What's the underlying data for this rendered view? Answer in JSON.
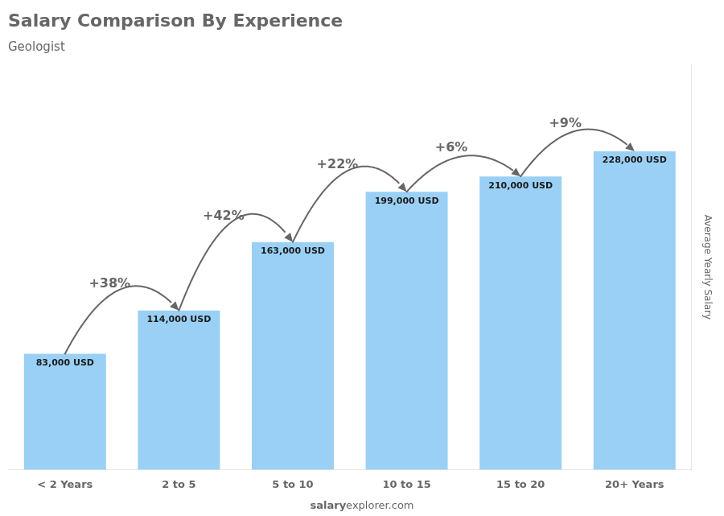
{
  "chart_data": {
    "type": "bar",
    "title": "Salary Comparison By Experience",
    "subtitle": "Geologist",
    "ylabel": "Average Yearly Salary",
    "categories": [
      "< 2 Years",
      "2 to 5",
      "5 to 10",
      "10 to 15",
      "15 to 20",
      "20+ Years"
    ],
    "values": [
      83000,
      114000,
      163000,
      199000,
      210000,
      228000
    ],
    "value_labels": [
      "83,000 USD",
      "114,000 USD",
      "163,000 USD",
      "199,000 USD",
      "210,000 USD",
      "228,000 USD"
    ],
    "data_labels": true,
    "ylim": [
      0,
      290000
    ],
    "grid": false,
    "tick_labels": "x",
    "annotations": [
      {
        "text": "+38%",
        "from": "< 2 Years",
        "to": "2 to 5"
      },
      {
        "text": "+42%",
        "from": "2 to 5",
        "to": "5 to 10"
      },
      {
        "text": "+22%",
        "from": "5 to 10",
        "to": "10 to 15"
      },
      {
        "text": "+6%",
        "from": "10 to 15",
        "to": "15 to 20"
      },
      {
        "text": "+9%",
        "from": "15 to 20",
        "to": "20+ Years"
      },
      {
        "text": "salary"
      },
      {
        "text": "explorer.com"
      }
    ]
  }
}
